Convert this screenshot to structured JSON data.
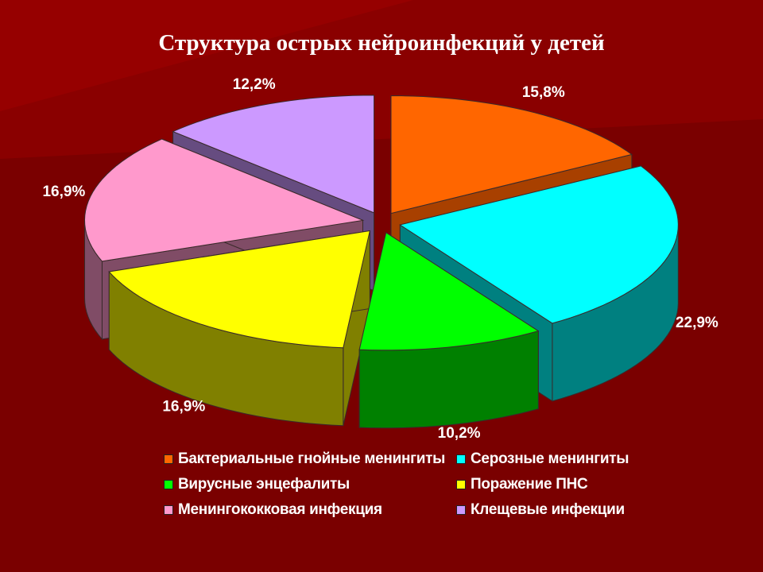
{
  "slide": {
    "title": "Структура острых нейроинфекций у детей"
  },
  "colors": {
    "background": "#7a0000",
    "background_light": "#8e0000"
  },
  "chart_data": {
    "type": "pie",
    "title": "Структура острых нейроинфекций у детей",
    "legend_position": "bottom",
    "slices": [
      {
        "label": "Бактериальные гнойные менингиты",
        "value": 15.8,
        "value_label": "15,8%",
        "color": "#ff6600",
        "side_color": "#a84000"
      },
      {
        "label": "Серозные менингиты",
        "value": 22.9,
        "value_label": "22,9%",
        "color": "#00ffff",
        "side_color": "#008080"
      },
      {
        "label": "Вирусные энцефалиты",
        "value": 10.2,
        "value_label": "10,2%",
        "color": "#00ff00",
        "side_color": "#008000"
      },
      {
        "label": "Поражение ПНС",
        "value": 16.9,
        "value_label": "16,9%",
        "color": "#ffff00",
        "side_color": "#808000"
      },
      {
        "label": "Менингококковая инфекция",
        "value": 16.9,
        "value_label": "16,9%",
        "color": "#ff99cc",
        "side_color": "#804c66"
      },
      {
        "label": "Клещевые инфекции",
        "value": 12.2,
        "value_label": "12,2%",
        "color": "#cc99ff",
        "side_color": "#664c80"
      }
    ]
  }
}
